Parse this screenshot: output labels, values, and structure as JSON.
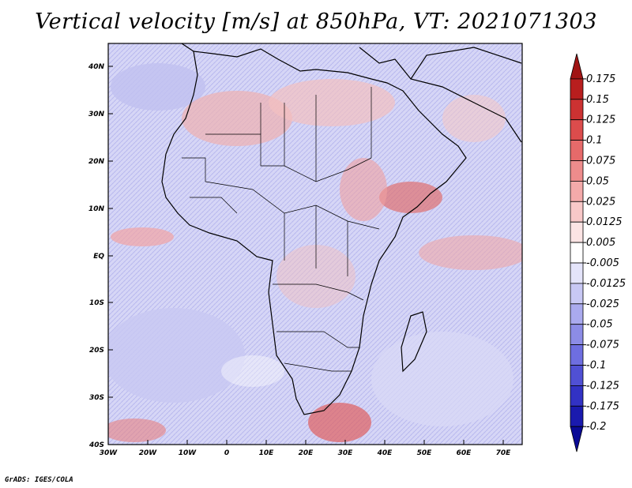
{
  "title": "Vertical velocity [m/s] at 850hPa, VT: 2021071303",
  "footer": "GrADS: IGES/COLA",
  "map": {
    "lon_range": [
      -30,
      75
    ],
    "lat_range": [
      -40,
      45
    ],
    "lat_ticks": [
      "40N",
      "30N",
      "20N",
      "10N",
      "EQ",
      "10S",
      "20S",
      "30S",
      "40S"
    ],
    "lon_ticks": [
      "30W",
      "20W",
      "10W",
      "0",
      "10E",
      "20E",
      "30E",
      "40E",
      "50E",
      "60E",
      "70E"
    ]
  },
  "colorbar": {
    "labels": [
      "0.175",
      "0.15",
      "0.125",
      "0.1",
      "0.075",
      "0.05",
      "0.025",
      "0.0125",
      "0.005",
      "-0.005",
      "-0.0125",
      "-0.025",
      "-0.05",
      "-0.075",
      "-0.1",
      "-0.125",
      "-0.175",
      "-0.2"
    ],
    "colors": [
      "#a01414",
      "#b81e1e",
      "#cc3232",
      "#dc4c4c",
      "#e66a6a",
      "#ee8c8c",
      "#f4aaaa",
      "#f8c8c8",
      "#fce4e4",
      "#ffffff",
      "#e4e4fa",
      "#c8c8f4",
      "#aaaaee",
      "#8c8ce6",
      "#6e6ee0",
      "#5050d4",
      "#3232c4",
      "#1a1aae",
      "#0a0a96"
    ]
  }
}
